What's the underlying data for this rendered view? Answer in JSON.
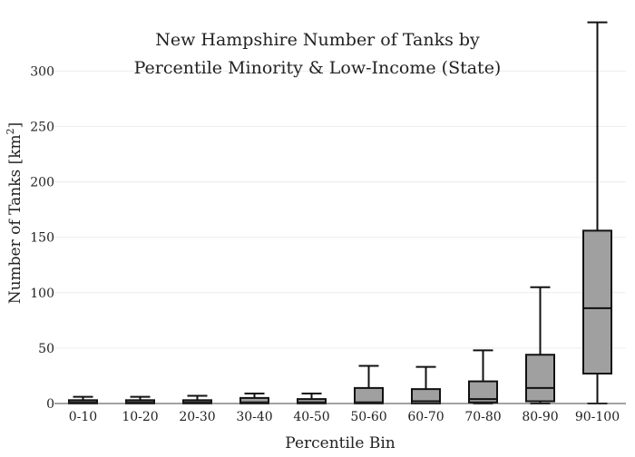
{
  "chart_data": {
    "type": "box",
    "title_lines": [
      "New Hampshire Number of Tanks by",
      "Percentile Minority & Low-Income (State)"
    ],
    "xlabel": "Percentile Bin",
    "ylabel": "Number of Tanks  [km",
    "ylabel_sup": "2",
    "ylabel_close": "]",
    "ylim": [
      0,
      345
    ],
    "yticks": [
      0,
      50,
      100,
      150,
      200,
      250,
      300
    ],
    "grid": true,
    "categories": [
      "0-10",
      "10-20",
      "20-30",
      "30-40",
      "40-50",
      "50-60",
      "60-70",
      "70-80",
      "80-90",
      "90-100"
    ],
    "boxes": [
      {
        "min": 0,
        "q1": 0,
        "median": 1,
        "q3": 3,
        "max": 6
      },
      {
        "min": 0,
        "q1": 0,
        "median": 1,
        "q3": 3,
        "max": 6
      },
      {
        "min": 0,
        "q1": 0,
        "median": 1,
        "q3": 3,
        "max": 7
      },
      {
        "min": 0,
        "q1": 0,
        "median": 1,
        "q3": 5,
        "max": 9
      },
      {
        "min": 0,
        "q1": 0,
        "median": 1,
        "q3": 4,
        "max": 9
      },
      {
        "min": 0,
        "q1": 0,
        "median": 1,
        "q3": 14,
        "max": 34
      },
      {
        "min": 0,
        "q1": 0,
        "median": 2,
        "q3": 13,
        "max": 33
      },
      {
        "min": 0,
        "q1": 1,
        "median": 4,
        "q3": 20,
        "max": 48
      },
      {
        "min": 0,
        "q1": 2,
        "median": 14,
        "q3": 44,
        "max": 105
      },
      {
        "min": 0,
        "q1": 27,
        "median": 86,
        "q3": 156,
        "max": 344
      }
    ],
    "box_color": "#a0a0a0",
    "line_color": "#111111"
  }
}
